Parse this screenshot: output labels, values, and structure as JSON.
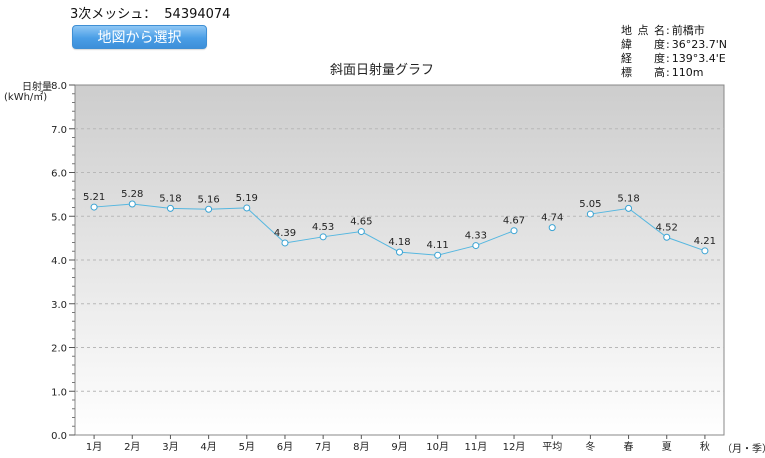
{
  "header": {
    "mesh_label": "3次メッシュ：",
    "mesh_code": "54394074",
    "map_button_label": "地図から選択"
  },
  "location": {
    "rows": [
      {
        "label": "地点名",
        "value": "前橋市"
      },
      {
        "label": "緯度",
        "value": "36°23.7'N"
      },
      {
        "label": "経度",
        "value": "139°3.4'E"
      },
      {
        "label": "標高",
        "value": "110m"
      }
    ]
  },
  "chart_data": {
    "type": "line",
    "title": "斜面日射量グラフ",
    "ylabel": "日射量",
    "yunit": "(kWh/㎡)",
    "xunit": "（月・季）",
    "ylim": [
      0,
      8
    ],
    "yticks": [
      "0.0",
      "1.0",
      "2.0",
      "3.0",
      "4.0",
      "5.0",
      "6.0",
      "7.0",
      "8.0"
    ],
    "categories": [
      "1月",
      "2月",
      "3月",
      "4月",
      "5月",
      "6月",
      "7月",
      "8月",
      "9月",
      "10月",
      "11月",
      "12月",
      "平均",
      "冬",
      "春",
      "夏",
      "秋"
    ],
    "values": [
      5.21,
      5.28,
      5.18,
      5.16,
      5.19,
      4.39,
      4.53,
      4.65,
      4.18,
      4.11,
      4.33,
      4.67,
      4.74,
      5.05,
      5.18,
      4.52,
      4.21
    ],
    "labels": [
      "5.21",
      "5.28",
      "5.18",
      "5.16",
      "5.19",
      "4.39",
      "4.53",
      "4.65",
      "4.18",
      "4.11",
      "4.33",
      "4.67",
      "4.74",
      "5.05",
      "5.18",
      "4.52",
      "4.21"
    ],
    "line_segments": [
      [
        0,
        11
      ],
      [
        13,
        16
      ]
    ],
    "grid": true,
    "colors": {
      "line": "#55b7e0",
      "marker": "#3aa3d3",
      "grid": "#b8b8b8"
    }
  }
}
